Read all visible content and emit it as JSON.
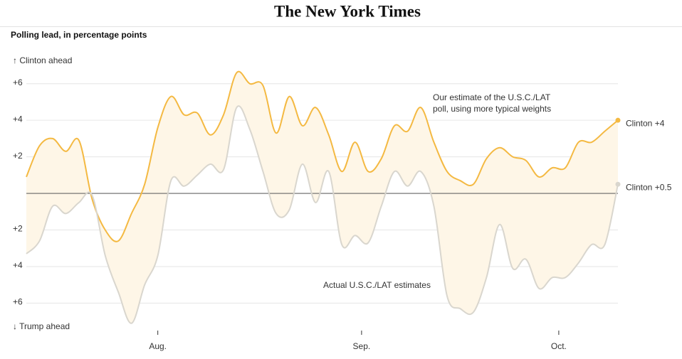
{
  "header": {
    "title": "The New York Times"
  },
  "chart_data": {
    "type": "line",
    "title": "Polling lead, in percentage points",
    "y_top_label": "↑ Clinton ahead",
    "y_bottom_label": "↓ Trump ahead",
    "x": [
      0,
      2,
      4,
      6,
      8,
      10,
      12,
      14,
      16,
      18,
      20,
      22,
      24,
      26,
      28,
      30,
      32,
      34,
      36,
      38,
      40,
      42,
      44,
      46,
      48,
      50,
      52,
      54,
      56,
      58,
      60,
      62,
      64,
      66,
      68,
      70,
      72,
      74,
      76,
      78,
      80,
      82,
      84,
      86,
      88,
      90
    ],
    "xlim": [
      0,
      90
    ],
    "xticks": [
      {
        "value": 20,
        "label": "Aug."
      },
      {
        "value": 51,
        "label": "Sep."
      },
      {
        "value": 81,
        "label": "Oct."
      }
    ],
    "ylim": [
      -7.5,
      7
    ],
    "yticks": [
      {
        "value": 6,
        "label": "+6"
      },
      {
        "value": 4,
        "label": "+4"
      },
      {
        "value": 2,
        "label": "+2"
      },
      {
        "value": -2,
        "label": "+2"
      },
      {
        "value": -4,
        "label": "+4"
      },
      {
        "value": -6,
        "label": "+6"
      }
    ],
    "grid": true,
    "zero_line": true,
    "fill_between": "#fef6e7",
    "series": [
      {
        "color": "#f4b942",
        "end_label": "Clinton +4",
        "annotation_lines": [
          "Our estimate of the  U.S.C./LAT",
          "poll, using more typical weights"
        ],
        "values": [
          0.9,
          2.6,
          3.0,
          2.3,
          2.9,
          -0.3,
          -2.0,
          -2.6,
          -1.1,
          0.5,
          3.6,
          5.3,
          4.3,
          4.4,
          3.2,
          4.3,
          6.6,
          6.0,
          5.9,
          3.3,
          5.3,
          3.7,
          4.7,
          3.2,
          1.2,
          2.8,
          1.2,
          1.9,
          3.7,
          3.4,
          4.7,
          2.8,
          1.2,
          0.7,
          0.5,
          1.9,
          2.5,
          2.0,
          1.8,
          0.9,
          1.4,
          1.4,
          2.8,
          2.8,
          3.4,
          4
        ]
      },
      {
        "color": "#d9d6ce",
        "end_label": "Clinton +0.5",
        "annotation_lines": [
          "Actual U.S.C./LAT estimates"
        ],
        "values": [
          -3.3,
          -2.6,
          -0.7,
          -1.1,
          -0.5,
          -0.1,
          -3.4,
          -5.4,
          -7.1,
          -5.0,
          -3.4,
          0.7,
          0.4,
          1.0,
          1.6,
          1.3,
          4.7,
          3.5,
          1.2,
          -1.1,
          -0.9,
          1.6,
          -0.5,
          1.2,
          -2.8,
          -2.3,
          -2.7,
          -0.7,
          1.2,
          0.4,
          1.2,
          -0.7,
          -5.6,
          -6.3,
          -6.5,
          -4.6,
          -1.7,
          -4.1,
          -3.6,
          -5.2,
          -4.6,
          -4.6,
          -3.8,
          -2.8,
          -2.8,
          0.5
        ]
      }
    ]
  }
}
